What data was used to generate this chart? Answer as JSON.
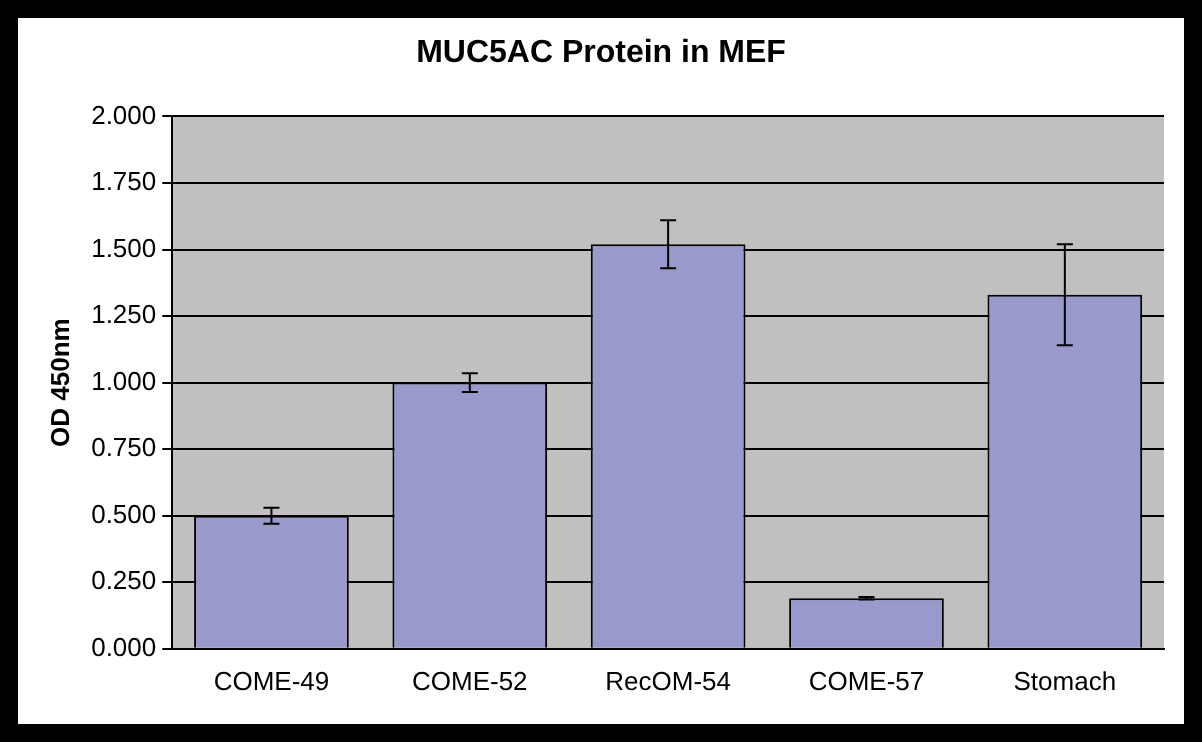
{
  "chart_data": {
    "type": "bar",
    "title": "MUC5AC Protein in MEF",
    "ylabel": "OD 450nm",
    "categories": [
      "COME-49",
      "COME-52",
      "RecOM-54",
      "COME-57",
      "Stomach"
    ],
    "values": [
      0.5,
      1.0,
      1.52,
      0.19,
      1.33
    ],
    "errors": [
      0.03,
      0.035,
      0.09,
      0.005,
      0.19
    ],
    "color": "#9999cc",
    "ylim": [
      0,
      2
    ],
    "yticks": [
      {
        "value": 0,
        "label": "0.000"
      },
      {
        "value": 0.25,
        "label": "0.250"
      },
      {
        "value": 0.5,
        "label": "0.500"
      },
      {
        "value": 0.75,
        "label": "0.750"
      },
      {
        "value": 1,
        "label": "1.000"
      },
      {
        "value": 1.25,
        "label": "1.250"
      },
      {
        "value": 1.5,
        "label": "1.500"
      },
      {
        "value": 1.75,
        "label": "1.750"
      },
      {
        "value": 2,
        "label": "2.000"
      }
    ],
    "grid": "y",
    "legend": false
  }
}
